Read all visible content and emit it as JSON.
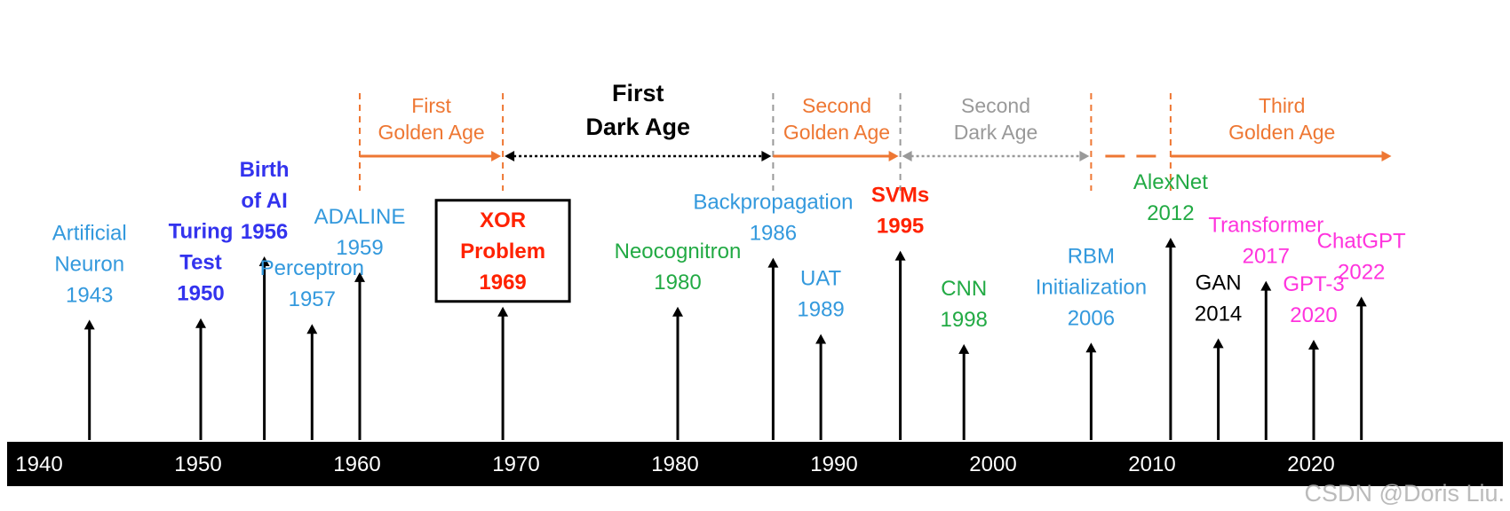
{
  "colors": {
    "axis_bar": "#000000",
    "axis_text": "#ffffff",
    "golden": "#ee7733",
    "dark": "#000000",
    "dark2": "#999999",
    "blue": "#3399dd",
    "violet": "#3333ee",
    "red": "#ff2200",
    "green": "#22aa44",
    "magenta": "#ff33dd",
    "black": "#000000"
  },
  "axis": {
    "ticks": [
      {
        "year": 1940,
        "label": "1940"
      },
      {
        "year": 1950,
        "label": "1950"
      },
      {
        "year": 1960,
        "label": "1960"
      },
      {
        "year": 1970,
        "label": "1970"
      },
      {
        "year": 1980,
        "label": "1980"
      },
      {
        "year": 1990,
        "label": "1990"
      },
      {
        "year": 2000,
        "label": "2000"
      },
      {
        "year": 2010,
        "label": "2010"
      },
      {
        "year": 2020,
        "label": "2020"
      }
    ]
  },
  "eras": [
    {
      "id": "first-golden",
      "lines": [
        "First",
        "Golden Age"
      ],
      "color": "golden",
      "style": "solid",
      "from": 1960,
      "to": 1969,
      "bold": false
    },
    {
      "id": "first-dark",
      "lines": [
        "First",
        "Dark Age"
      ],
      "color": "dark",
      "style": "dotted",
      "from": 1969,
      "to": 1986,
      "bold": true
    },
    {
      "id": "second-golden",
      "lines": [
        "Second",
        "Golden Age"
      ],
      "color": "golden",
      "style": "solid",
      "from": 1986,
      "to": 1994,
      "bold": false
    },
    {
      "id": "second-dark",
      "lines": [
        "Second",
        "Dark Age"
      ],
      "color": "dark2",
      "style": "dotted",
      "from": 1994,
      "to": 2006,
      "bold": false
    },
    {
      "id": "third-golden",
      "lines": [
        "Third",
        "Golden Age"
      ],
      "color": "golden",
      "style": "solid",
      "from": 2011,
      "to": 2025,
      "bold": false
    }
  ],
  "era_gap": {
    "from": 2006,
    "to": 2011,
    "color": "golden",
    "style": "dashed"
  },
  "era_boundaries": [
    {
      "year": 1960,
      "color": "golden"
    },
    {
      "year": 1969,
      "color": "golden"
    },
    {
      "year": 1986,
      "color": "dark2"
    },
    {
      "year": 1994,
      "color": "dark2"
    },
    {
      "year": 2006,
      "color": "golden"
    },
    {
      "year": 2011,
      "color": "golden"
    }
  ],
  "events": [
    {
      "id": "artificial-neuron",
      "lines": [
        "Artificial",
        "Neuron",
        "1943"
      ],
      "year": 1943,
      "color": "blue",
      "level": 0.43
    },
    {
      "id": "turing-test",
      "lines": [
        "Turing",
        "Test",
        "1950"
      ],
      "year": 1950,
      "color": "violet",
      "level": 0.44
    },
    {
      "id": "birth-of-ai",
      "lines": [
        "Birth",
        "of AI",
        "1956"
      ],
      "year": 1954,
      "color": "violet",
      "level": 0.87
    },
    {
      "id": "perceptron",
      "lines": [
        "Perceptron",
        "1957"
      ],
      "year": 1957,
      "color": "blue",
      "level": 0.4
    },
    {
      "id": "adaline",
      "lines": [
        "ADALINE",
        "1959"
      ],
      "year": 1960,
      "color": "blue",
      "level": 0.76
    },
    {
      "id": "xor-problem",
      "lines": [
        "XOR",
        "Problem",
        "1969"
      ],
      "year": 1969,
      "color": "red",
      "level": 0.52,
      "boxed": true
    },
    {
      "id": "neocognitron",
      "lines": [
        "Neocognitron",
        "1980"
      ],
      "year": 1980,
      "color": "green",
      "level": 0.52
    },
    {
      "id": "backpropagation",
      "lines": [
        "Backpropagation",
        "1986"
      ],
      "year": 1986,
      "color": "blue",
      "level": 0.86
    },
    {
      "id": "uat",
      "lines": [
        "UAT",
        "1989"
      ],
      "year": 1989,
      "color": "blue",
      "level": 0.33
    },
    {
      "id": "svms",
      "lines": [
        "SVMs",
        "1995"
      ],
      "year": 1994,
      "color": "red",
      "level": 0.91
    },
    {
      "id": "cnn",
      "lines": [
        "CNN",
        "1998"
      ],
      "year": 1998,
      "color": "green",
      "level": 0.26
    },
    {
      "id": "rbm-initialization",
      "lines": [
        "RBM",
        "Initialization",
        "2006"
      ],
      "year": 2006,
      "color": "blue",
      "level": 0.27
    },
    {
      "id": "alexnet",
      "lines": [
        "AlexNet",
        "2012"
      ],
      "year": 2011,
      "color": "green",
      "level": 1.0
    },
    {
      "id": "gan",
      "lines": [
        "GAN",
        "2014"
      ],
      "year": 2014,
      "color": "black",
      "level": 0.3
    },
    {
      "id": "transformer",
      "lines": [
        "Transformer",
        "2017"
      ],
      "year": 2017,
      "color": "magenta",
      "level": 0.7
    },
    {
      "id": "gpt-3",
      "lines": [
        "GPT-3",
        "2020"
      ],
      "year": 2020,
      "color": "magenta",
      "level": 0.29
    },
    {
      "id": "chatgpt",
      "lines": [
        "ChatGPT",
        "2022"
      ],
      "year": 2023,
      "color": "magenta",
      "level": 0.59
    }
  ],
  "watermark": "CSDN @Doris Liu."
}
